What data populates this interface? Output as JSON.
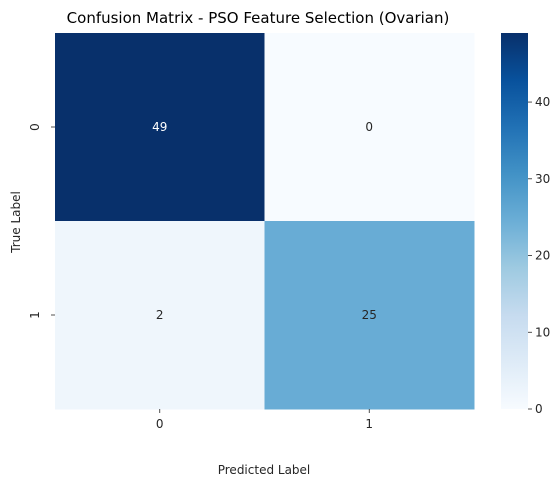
{
  "chart_data": {
    "type": "heatmap",
    "title": "Confusion Matrix - PSO Feature Selection (Ovarian)",
    "xlabel": "Predicted Label",
    "ylabel": "True Label",
    "x_categories": [
      "0",
      "1"
    ],
    "y_categories": [
      "0",
      "1"
    ],
    "values": [
      [
        49,
        0
      ],
      [
        2,
        25
      ]
    ],
    "colormap": "Blues",
    "colorbar": {
      "min": 0,
      "max": 49,
      "ticks": [
        0,
        10,
        20,
        30,
        40
      ],
      "tick_labels": [
        "0",
        "10",
        "20",
        "30",
        "40"
      ]
    },
    "colors": {
      "low": "#f7fbff",
      "high": "#08306b"
    }
  }
}
